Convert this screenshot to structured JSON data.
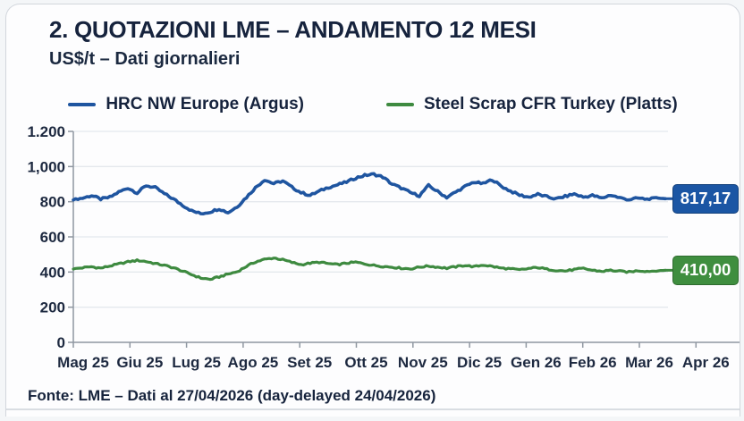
{
  "header": {
    "title": "2. QUOTAZIONI LME – ANDAMENTO 12 MESI",
    "subtitle": "US$/t – Dati giornalieri"
  },
  "legend": [
    {
      "label": "HRC NW Europe (Argus)",
      "color": "#1f55a0"
    },
    {
      "label": "Steel Scrap CFR Turkey (Platts)",
      "color": "#3e8a40"
    }
  ],
  "footer": {
    "source": "Fonte: LME – Dati al 27/04/2026 (day-delayed 24/04/2026)"
  },
  "chart_data": {
    "type": "line",
    "title": "2. QUOTAZIONI LME – ANDAMENTO 12 MESI",
    "ylabel": "US$/t",
    "ylim": [
      0,
      1200
    ],
    "grid": true,
    "legend_position": "top",
    "x_tick_labels": [
      "Mag 25",
      "Giu 25",
      "Lug 25",
      "Ago 25",
      "Set 25",
      "Ott 25",
      "Nov 25",
      "Dic 25",
      "Gen 26",
      "Feb 26",
      "Mar 26",
      "Apr 26"
    ],
    "y_tick_labels": [
      "0",
      "200",
      "400",
      "600",
      "800",
      "1,000",
      "1.200"
    ],
    "series": [
      {
        "name": "HRC NW Europe (Argus)",
        "color": "#1f55a0",
        "end_label": "817,17",
        "end_bg": "#1b56a4",
        "end_border": "#14417c",
        "values": [
          812,
          820,
          835,
          815,
          825,
          855,
          878,
          850,
          892,
          880,
          845,
          815,
          780,
          748,
          732,
          742,
          760,
          738,
          772,
          825,
          880,
          925,
          903,
          918,
          882,
          852,
          836,
          860,
          882,
          896,
          912,
          935,
          950,
          956,
          940,
          900,
          878,
          852,
          834,
          892,
          858,
          825,
          855,
          886,
          912,
          902,
          926,
          888,
          860,
          838,
          826,
          842,
          828,
          816,
          830,
          844,
          826,
          836,
          820,
          838,
          822,
          812,
          820,
          814,
          822,
          817.17
        ]
      },
      {
        "name": "Steel Scrap CFR Turkey (Platts)",
        "color": "#3e8a40",
        "end_label": "410,00",
        "end_bg": "#3f8e3f",
        "end_border": "#2f6b2f",
        "values": [
          418,
          424,
          430,
          422,
          434,
          446,
          458,
          466,
          460,
          448,
          438,
          424,
          405,
          385,
          366,
          358,
          372,
          388,
          402,
          432,
          458,
          472,
          480,
          470,
          455,
          442,
          450,
          456,
          448,
          442,
          450,
          456,
          446,
          438,
          432,
          428,
          422,
          418,
          428,
          434,
          428,
          422,
          430,
          438,
          430,
          440,
          432,
          422,
          418,
          412,
          420,
          426,
          416,
          410,
          406,
          414,
          420,
          410,
          404,
          410,
          404,
          400,
          408,
          404,
          406,
          410
        ]
      }
    ]
  }
}
